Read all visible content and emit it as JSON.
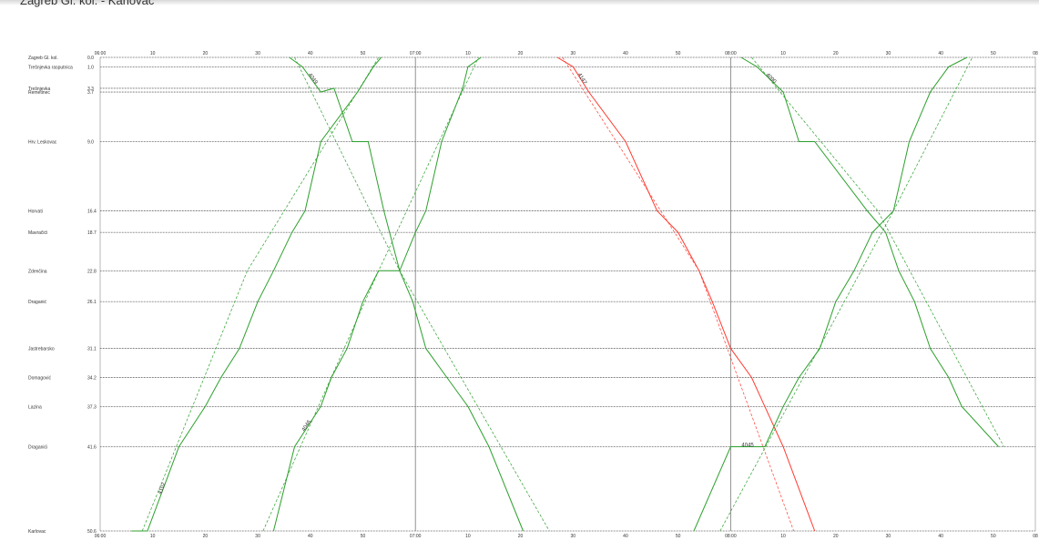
{
  "window": {
    "title": "Zagreb Gl. kol. - Karlovac"
  },
  "chart_data": {
    "type": "line",
    "title": "Zagreb Gl. kol. - Karlovac",
    "time_range": [
      "06:00",
      "08:55"
    ],
    "top_tick_labels": [
      "06:00",
      "10",
      "20",
      "30",
      "40",
      "50",
      "07:00",
      "10",
      "20",
      "30",
      "40",
      "50",
      "08:00",
      "10",
      "20",
      "30",
      "40",
      "50",
      "08"
    ],
    "bottom_tick_labels": [
      "06:00",
      "10",
      "20",
      "30",
      "40",
      "50",
      "07:00",
      "10",
      "20",
      "30",
      "40",
      "50",
      "08:00",
      "10",
      "20",
      "30",
      "40",
      "50",
      "08"
    ],
    "stations": [
      {
        "name": "Zagreb Gl. kol.",
        "km": "0.0",
        "v": 0.0
      },
      {
        "name": "Trešnjevka rasputnica",
        "km": "1.0",
        "v": 1.0
      },
      {
        "name": "Trešnjevka",
        "km": "3.3",
        "v": 3.3
      },
      {
        "name": "Remetinec",
        "km": "3.7",
        "v": 3.7
      },
      {
        "name": "Hrv. Leskovac",
        "km": "9.0",
        "v": 9.0
      },
      {
        "name": "Horvati",
        "km": "16.4",
        "v": 16.4
      },
      {
        "name": "Mavračići",
        "km": "18.7",
        "v": 18.7
      },
      {
        "name": "Zdenčina",
        "km": "22.8",
        "v": 22.8
      },
      {
        "name": "Draganić",
        "km": "26.1",
        "v": 26.1
      },
      {
        "name": "Jastrebarsko",
        "km": "31.1",
        "v": 31.1
      },
      {
        "name": "Domagović",
        "km": "34.2",
        "v": 34.2
      },
      {
        "name": "Lazina",
        "km": "37.3",
        "v": 37.3
      },
      {
        "name": "Draganići",
        "km": "41.6",
        "v": 41.6
      },
      {
        "name": "Karlovac",
        "km": "50.6",
        "v": 50.6
      }
    ],
    "series": [
      {
        "name": "4102",
        "color": "#2ca02c",
        "style": "solid",
        "points": [
          [
            6.0,
            50.6
          ],
          [
            9.0,
            50.6
          ],
          [
            15.0,
            41.6
          ],
          [
            20.0,
            37.3
          ],
          [
            23.0,
            34.2
          ],
          [
            26.5,
            31.1
          ],
          [
            30.0,
            26.1
          ],
          [
            33.0,
            22.8
          ],
          [
            36.5,
            18.7
          ],
          [
            39.0,
            16.4
          ],
          [
            42.0,
            9.0
          ],
          [
            49.0,
            3.7
          ],
          [
            52.0,
            1.0
          ],
          [
            53.5,
            0.0
          ]
        ]
      },
      {
        "name": "",
        "color": "#2ca02c",
        "style": "dashed",
        "points": [
          [
            8.0,
            50.6
          ],
          [
            28.0,
            22.8
          ],
          [
            53.0,
            0.0
          ]
        ]
      },
      {
        "name": "4049",
        "color": "#2ca02c",
        "style": "solid",
        "points": [
          [
            36.0,
            0.0
          ],
          [
            38.5,
            1.0
          ],
          [
            42.0,
            3.7
          ],
          [
            44.5,
            3.3
          ],
          [
            48.0,
            9.0
          ],
          [
            51.0,
            9.0
          ],
          [
            54.0,
            16.4
          ],
          [
            57.0,
            22.8
          ],
          [
            59.5,
            26.1
          ],
          [
            62.0,
            31.1
          ],
          [
            66.0,
            34.2
          ],
          [
            70.0,
            37.3
          ],
          [
            74.0,
            41.6
          ],
          [
            80.5,
            50.6
          ]
        ]
      },
      {
        "name": "",
        "color": "#2ca02c",
        "style": "dashed",
        "points": [
          [
            37.0,
            0.0
          ],
          [
            57.0,
            22.8
          ],
          [
            85.5,
            50.6
          ]
        ]
      },
      {
        "name": "4046",
        "color": "#2ca02c",
        "style": "solid",
        "points": [
          [
            33.0,
            50.6
          ],
          [
            37.0,
            41.6
          ],
          [
            42.0,
            37.3
          ],
          [
            44.0,
            34.2
          ],
          [
            47.0,
            31.1
          ],
          [
            50.0,
            26.1
          ],
          [
            53.0,
            22.8
          ],
          [
            57.0,
            22.8
          ],
          [
            60.0,
            18.7
          ],
          [
            62.0,
            16.4
          ],
          [
            65.0,
            9.0
          ],
          [
            69.0,
            3.3
          ],
          [
            70.0,
            1.0
          ],
          [
            72.5,
            0.0
          ]
        ]
      },
      {
        "name": "",
        "color": "#2ca02c",
        "style": "dashed",
        "points": [
          [
            31.0,
            50.6
          ],
          [
            53.0,
            22.8
          ],
          [
            72.0,
            0.0
          ]
        ]
      },
      {
        "name": "4147",
        "color": "#ff3b30",
        "style": "solid",
        "points": [
          [
            87.0,
            0.0
          ],
          [
            90.0,
            1.0
          ],
          [
            93.0,
            3.7
          ],
          [
            100.0,
            9.0
          ],
          [
            106.0,
            16.4
          ],
          [
            110.0,
            18.7
          ],
          [
            114.0,
            22.8
          ],
          [
            116.5,
            26.1
          ],
          [
            120.0,
            31.1
          ],
          [
            124.0,
            34.2
          ],
          [
            126.5,
            37.3
          ],
          [
            130.0,
            41.6
          ],
          [
            136.0,
            50.6
          ]
        ]
      },
      {
        "name": "",
        "color": "#ff3b30",
        "style": "dashed",
        "points": [
          [
            88.0,
            0.0
          ],
          [
            114.0,
            22.8
          ],
          [
            132.0,
            50.6
          ]
        ]
      },
      {
        "name": "4045",
        "color": "#2ca02c",
        "style": "solid",
        "points": [
          [
            113.0,
            50.6
          ],
          [
            120.0,
            41.6
          ],
          [
            126.5,
            41.6
          ],
          [
            130.0,
            37.3
          ],
          [
            133.0,
            34.2
          ],
          [
            137.0,
            31.1
          ],
          [
            140.0,
            26.1
          ],
          [
            143.5,
            22.8
          ],
          [
            147.0,
            18.7
          ],
          [
            151.0,
            16.4
          ],
          [
            154.0,
            9.0
          ],
          [
            158.0,
            3.7
          ],
          [
            161.5,
            1.0
          ],
          [
            165.0,
            0.0
          ]
        ]
      },
      {
        "name": "",
        "color": "#2ca02c",
        "style": "dashed",
        "points": [
          [
            118.0,
            50.6
          ],
          [
            151.0,
            16.4
          ],
          [
            166.0,
            0.0
          ]
        ]
      },
      {
        "name": "4090",
        "color": "#2ca02c",
        "style": "solid",
        "points": [
          [
            122.0,
            0.0
          ],
          [
            125.0,
            1.0
          ],
          [
            130.0,
            3.7
          ],
          [
            133.0,
            9.0
          ],
          [
            136.0,
            9.0
          ],
          [
            146.0,
            16.4
          ],
          [
            149.5,
            18.7
          ],
          [
            152.0,
            22.8
          ],
          [
            155.0,
            26.1
          ],
          [
            158.0,
            31.1
          ],
          [
            161.5,
            34.2
          ],
          [
            164.0,
            37.3
          ],
          [
            171.0,
            41.6
          ]
        ]
      },
      {
        "name": "",
        "color": "#2ca02c",
        "style": "dashed",
        "points": [
          [
            124.0,
            0.0
          ],
          [
            148.0,
            16.4
          ],
          [
            172.0,
            41.6
          ]
        ]
      }
    ]
  }
}
